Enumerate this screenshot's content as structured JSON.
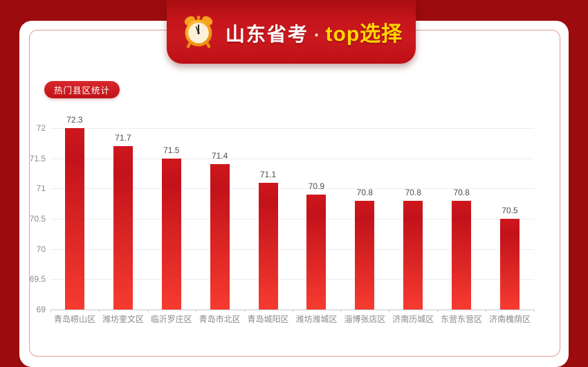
{
  "page": {
    "background_color": "#9c0b0e",
    "card_color": "#ffffff"
  },
  "banner": {
    "icon": "alarm-clock-icon",
    "title_cn": "山东省考",
    "separator": "·",
    "title_highlight": "top选择",
    "banner_red": "#c5151b",
    "highlight_yellow": "#ffd800"
  },
  "section_label": "热门县区统计",
  "chart_data": {
    "type": "bar",
    "title": "热门县区统计",
    "categories": [
      "青岛崂山区",
      "潍坊奎文区",
      "临沂罗庄区",
      "青岛市北区",
      "青岛城阳区",
      "潍坊潍城区",
      "淄博张店区",
      "济南历城区",
      "东营东营区",
      "济南槐荫区"
    ],
    "values": [
      72.3,
      71.7,
      71.5,
      71.4,
      71.1,
      70.9,
      70.8,
      70.8,
      70.8,
      70.5
    ],
    "xlabel": "",
    "ylabel": "",
    "ylim": [
      69,
      72
    ],
    "yticks": [
      69,
      69.5,
      70,
      70.5,
      71,
      71.5,
      72
    ],
    "grid": true,
    "legend": "none",
    "bar_gradient_top": "#c9131a",
    "bar_gradient_bottom": "#f63b30",
    "gridline_color": "#e8ecf4",
    "axis_color": "#c9ccd4",
    "tick_label_color": "#8a8a8a",
    "value_label_color": "#4d4d4d"
  }
}
